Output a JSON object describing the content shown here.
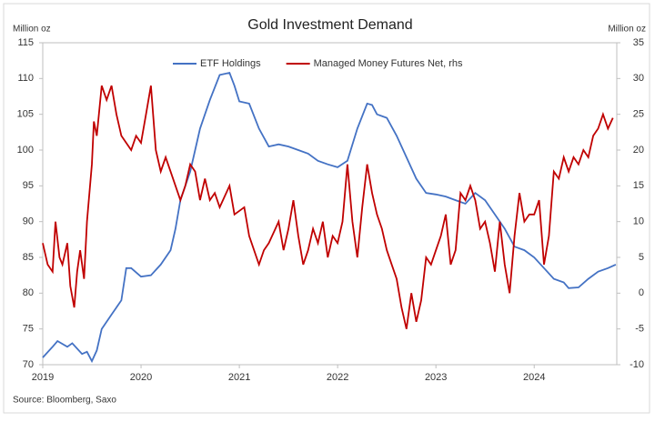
{
  "chart_data": {
    "type": "line",
    "title": "Gold Investment Demand",
    "y_label": "Million oz",
    "y2_label": "Million oz",
    "source": "Source: Bloomberg, Saxo",
    "xlim": [
      2019,
      2024.84
    ],
    "xticks": [
      2019,
      2020,
      2021,
      2022,
      2023,
      2024
    ],
    "ylim": [
      70,
      115
    ],
    "yticks": [
      70,
      75,
      80,
      85,
      90,
      95,
      100,
      105,
      110,
      115
    ],
    "y2lim": [
      -10,
      35
    ],
    "y2ticks": [
      -10,
      -5,
      0,
      5,
      10,
      15,
      20,
      25,
      30,
      35
    ],
    "legend": "top",
    "series": [
      {
        "name": "ETF Holdings",
        "color": "#4472c4",
        "x": [
          2019.0,
          2019.1,
          2019.15,
          2019.25,
          2019.3,
          2019.4,
          2019.45,
          2019.5,
          2019.55,
          2019.6,
          2019.7,
          2019.8,
          2019.85,
          2019.9,
          2020.0,
          2020.1,
          2020.2,
          2020.3,
          2020.35,
          2020.4,
          2020.5,
          2020.6,
          2020.7,
          2020.8,
          2020.9,
          2020.95,
          2021.0,
          2021.1,
          2021.2,
          2021.3,
          2021.4,
          2021.5,
          2021.6,
          2021.7,
          2021.8,
          2021.9,
          2022.0,
          2022.1,
          2022.2,
          2022.3,
          2022.35,
          2022.4,
          2022.5,
          2022.6,
          2022.7,
          2022.8,
          2022.9,
          2023.0,
          2023.1,
          2023.2,
          2023.3,
          2023.4,
          2023.5,
          2023.6,
          2023.7,
          2023.8,
          2023.9,
          2024.0,
          2024.1,
          2024.2,
          2024.3,
          2024.35,
          2024.45,
          2024.55,
          2024.65,
          2024.75,
          2024.83
        ],
        "values": [
          71,
          72.5,
          73.3,
          72.5,
          73,
          71.5,
          71.8,
          70.5,
          72,
          75,
          77,
          79,
          83.5,
          83.5,
          82.3,
          82.5,
          84,
          86,
          89,
          93,
          97,
          103,
          107,
          110.5,
          110.8,
          109,
          106.8,
          106.5,
          103,
          100.5,
          100.8,
          100.5,
          100,
          99.5,
          98.5,
          98,
          97.6,
          98.5,
          103,
          106.5,
          106.3,
          105,
          104.5,
          102,
          99,
          96,
          94,
          93.8,
          93.5,
          93,
          92.5,
          94,
          93,
          91,
          89,
          86.5,
          86,
          85,
          83.5,
          82,
          81.5,
          80.7,
          80.8,
          82,
          83,
          83.5,
          84
        ]
      },
      {
        "name": "Managed Money Futures Net, rhs",
        "color": "#c00000",
        "axis": "y2",
        "x": [
          2019.0,
          2019.05,
          2019.1,
          2019.13,
          2019.17,
          2019.2,
          2019.25,
          2019.28,
          2019.32,
          2019.35,
          2019.38,
          2019.42,
          2019.45,
          2019.5,
          2019.52,
          2019.55,
          2019.6,
          2019.65,
          2019.7,
          2019.75,
          2019.8,
          2019.85,
          2019.9,
          2019.95,
          2020.0,
          2020.05,
          2020.1,
          2020.15,
          2020.2,
          2020.25,
          2020.3,
          2020.35,
          2020.4,
          2020.45,
          2020.5,
          2020.55,
          2020.6,
          2020.65,
          2020.7,
          2020.75,
          2020.8,
          2020.9,
          2020.95,
          2021.05,
          2021.1,
          2021.2,
          2021.25,
          2021.3,
          2021.4,
          2021.45,
          2021.5,
          2021.55,
          2021.6,
          2021.65,
          2021.7,
          2021.75,
          2021.8,
          2021.85,
          2021.9,
          2021.95,
          2022.0,
          2022.05,
          2022.1,
          2022.15,
          2022.2,
          2022.25,
          2022.3,
          2022.35,
          2022.4,
          2022.45,
          2022.5,
          2022.55,
          2022.6,
          2022.65,
          2022.7,
          2022.75,
          2022.8,
          2022.85,
          2022.9,
          2022.95,
          2023.0,
          2023.05,
          2023.1,
          2023.15,
          2023.2,
          2023.25,
          2023.3,
          2023.35,
          2023.4,
          2023.45,
          2023.5,
          2023.55,
          2023.6,
          2023.65,
          2023.7,
          2023.75,
          2023.8,
          2023.85,
          2023.9,
          2023.95,
          2024.0,
          2024.05,
          2024.1,
          2024.15,
          2024.2,
          2024.25,
          2024.3,
          2024.35,
          2024.4,
          2024.45,
          2024.5,
          2024.55,
          2024.6,
          2024.65,
          2024.7,
          2024.75,
          2024.8
        ],
        "values": [
          7,
          4,
          3,
          10,
          5,
          4,
          7,
          1,
          -2,
          3,
          6,
          2,
          10,
          18,
          24,
          22,
          29,
          27,
          29,
          25,
          22,
          21,
          20,
          22,
          21,
          25,
          29,
          20,
          17,
          19,
          17,
          15,
          13,
          15,
          18,
          17,
          13,
          16,
          13,
          14,
          12,
          15,
          11,
          12,
          8,
          4,
          6,
          7,
          10,
          6,
          9,
          13,
          8,
          4,
          6,
          9,
          7,
          10,
          5,
          8,
          7,
          10,
          18,
          10,
          5,
          12,
          18,
          14,
          11,
          9,
          6,
          4,
          2,
          -2,
          -5,
          0,
          -4,
          -1,
          5,
          4,
          6,
          8,
          11,
          4,
          6,
          14,
          13,
          15,
          13,
          9,
          10,
          7,
          3,
          10,
          4,
          0,
          8,
          14,
          10,
          11,
          11,
          13,
          4,
          8,
          17,
          16,
          19,
          17,
          19,
          18,
          20,
          19,
          22,
          23,
          25,
          23,
          24.5
        ]
      }
    ]
  }
}
